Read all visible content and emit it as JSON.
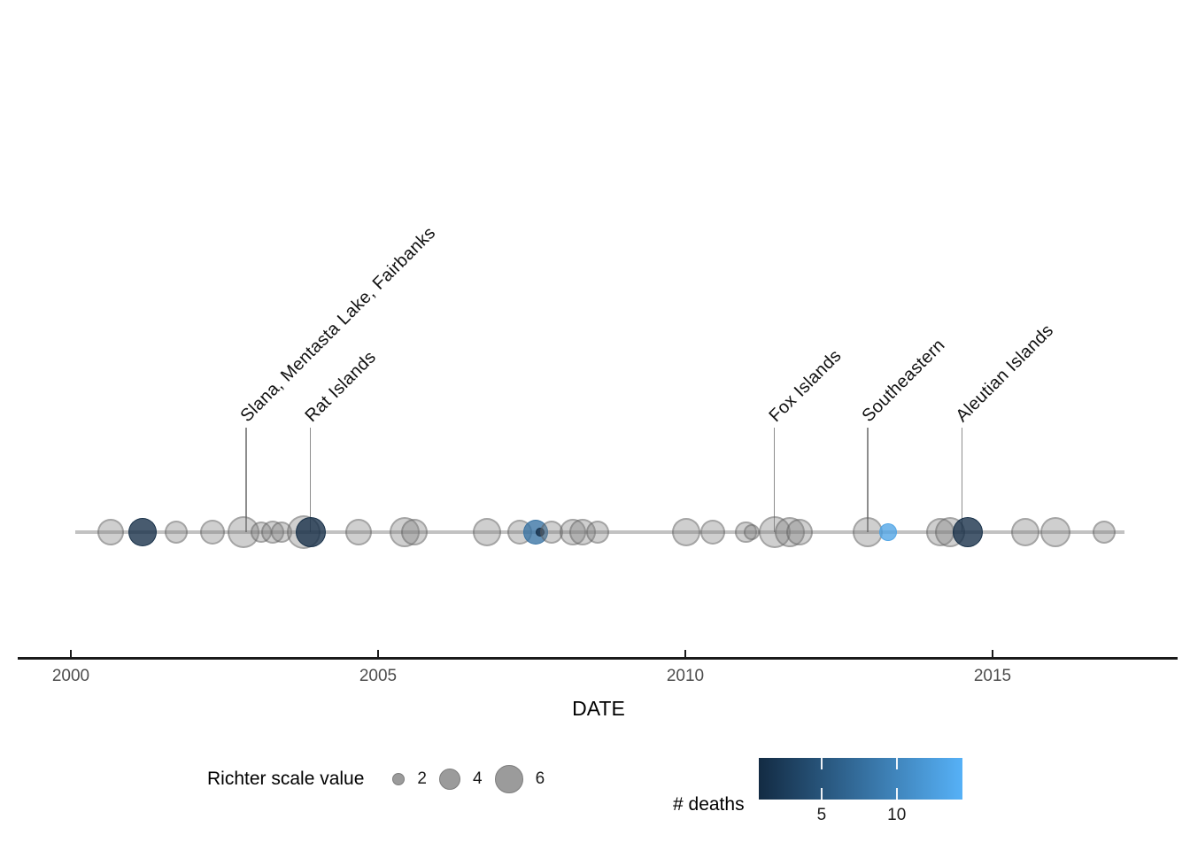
{
  "chart_data": {
    "type": "scatter",
    "title": "",
    "xlabel": "DATE",
    "ylabel": "",
    "grid": false,
    "x_domain": [
      1999.1,
      2018.0
    ],
    "x_ticks": [
      2000,
      2005,
      2010,
      2015
    ],
    "points": [
      {
        "year": 2000.65,
        "magnitude": 5.5,
        "deaths": null
      },
      {
        "year": 2001.17,
        "magnitude": 6.0,
        "deaths": 1
      },
      {
        "year": 2001.71,
        "magnitude": 4.5,
        "deaths": null
      },
      {
        "year": 2002.31,
        "magnitude": 5.0,
        "deaths": null
      },
      {
        "year": 2002.81,
        "magnitude": 7.0,
        "deaths": null
      },
      {
        "year": 2003.1,
        "magnitude": 4.0,
        "deaths": null
      },
      {
        "year": 2003.29,
        "magnitude": 4.5,
        "deaths": null
      },
      {
        "year": 2003.43,
        "magnitude": 4.0,
        "deaths": null
      },
      {
        "year": 2003.79,
        "magnitude": 7.5,
        "deaths": null
      },
      {
        "year": 2003.9,
        "magnitude": 6.5,
        "deaths": 1
      },
      {
        "year": 2004.68,
        "magnitude": 5.5,
        "deaths": null
      },
      {
        "year": 2005.43,
        "magnitude": 6.5,
        "deaths": null
      },
      {
        "year": 2005.59,
        "magnitude": 5.5,
        "deaths": null
      },
      {
        "year": 2006.77,
        "magnitude": 6.0,
        "deaths": null
      },
      {
        "year": 2007.31,
        "magnitude": 5.0,
        "deaths": null
      },
      {
        "year": 2007.56,
        "magnitude": 5.0,
        "deaths": 8
      },
      {
        "year": 2007.64,
        "magnitude": 1.2,
        "deaths": 1
      },
      {
        "year": 2007.82,
        "magnitude": 4.5,
        "deaths": null
      },
      {
        "year": 2008.17,
        "magnitude": 5.5,
        "deaths": null
      },
      {
        "year": 2008.33,
        "magnitude": 5.5,
        "deaths": null
      },
      {
        "year": 2008.57,
        "magnitude": 4.5,
        "deaths": null
      },
      {
        "year": 2010.01,
        "magnitude": 6.0,
        "deaths": null
      },
      {
        "year": 2010.45,
        "magnitude": 5.0,
        "deaths": null
      },
      {
        "year": 2010.99,
        "magnitude": 4.2,
        "deaths": null
      },
      {
        "year": 2011.08,
        "magnitude": 2.8,
        "deaths": null
      },
      {
        "year": 2011.45,
        "magnitude": 7.0,
        "deaths": null
      },
      {
        "year": 2011.7,
        "magnitude": 6.5,
        "deaths": null
      },
      {
        "year": 2011.86,
        "magnitude": 5.5,
        "deaths": null
      },
      {
        "year": 2012.97,
        "magnitude": 6.5,
        "deaths": null
      },
      {
        "year": 2013.3,
        "magnitude": 3.2,
        "deaths": 13
      },
      {
        "year": 2014.15,
        "magnitude": 6.0,
        "deaths": null
      },
      {
        "year": 2014.31,
        "magnitude": 6.5,
        "deaths": null
      },
      {
        "year": 2014.6,
        "magnitude": 6.5,
        "deaths": 1
      },
      {
        "year": 2015.53,
        "magnitude": 6.0,
        "deaths": null
      },
      {
        "year": 2016.02,
        "magnitude": 6.5,
        "deaths": null
      },
      {
        "year": 2016.81,
        "magnitude": 4.5,
        "deaths": null
      }
    ],
    "annotations": [
      {
        "label": "Slana, Mentasta Lake, Fairbanks",
        "year": 2002.85
      },
      {
        "label": "Rat Islands",
        "year": 2003.9
      },
      {
        "label": "Fox Islands",
        "year": 2011.45
      },
      {
        "label": "Southeastern",
        "year": 2012.97
      },
      {
        "label": "Aleutian Islands",
        "year": 2014.5
      }
    ],
    "size_legend": {
      "title": "Richter scale value",
      "values": [
        2,
        4,
        6
      ]
    },
    "color_legend": {
      "title": "# deaths",
      "ticks": [
        5,
        10
      ],
      "domain": [
        0.8,
        14.35
      ],
      "gradient_start": "#132B43",
      "gradient_end": "#56B1F7",
      "na_color": "#808080"
    }
  }
}
